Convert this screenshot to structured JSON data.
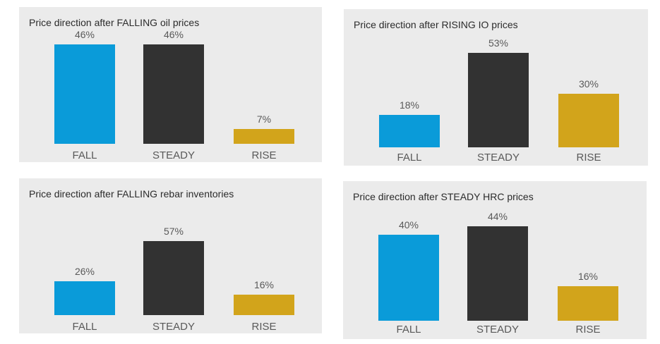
{
  "page": {
    "background": "#ffffff",
    "panel_background": "#ebebeb",
    "title_color": "#2b2b2b",
    "label_color": "#595959"
  },
  "bar_colors": [
    "#0a9bd9",
    "#323232",
    "#d2a41b"
  ],
  "bar_color_names": [
    "fall-blue",
    "steady-dark",
    "rise-gold"
  ],
  "chart_data": [
    {
      "type": "bar",
      "title": "Price direction after FALLING oil prices",
      "categories": [
        "FALL",
        "STEADY",
        "RISE"
      ],
      "values": [
        46,
        46,
        7
      ],
      "value_labels": [
        "46%",
        "46%",
        "7%"
      ],
      "unit": "%",
      "ylim": [
        0,
        50
      ],
      "grid": false,
      "legend": false,
      "axes_hidden": true
    },
    {
      "type": "bar",
      "title": "Price direction after RISING IO prices",
      "categories": [
        "FALL",
        "STEADY",
        "RISE"
      ],
      "values": [
        18,
        53,
        30
      ],
      "value_labels": [
        "18%",
        "53%",
        "30%"
      ],
      "unit": "%",
      "ylim": [
        0,
        60
      ],
      "grid": false,
      "legend": false,
      "axes_hidden": true
    },
    {
      "type": "bar",
      "title": "Price direction after FALLING rebar inventories",
      "categories": [
        "FALL",
        "STEADY",
        "RISE"
      ],
      "values": [
        26,
        57,
        16
      ],
      "value_labels": [
        "26%",
        "57%",
        "16%"
      ],
      "unit": "%",
      "ylim": [
        0,
        60
      ],
      "grid": false,
      "legend": false,
      "axes_hidden": true
    },
    {
      "type": "bar",
      "title": "Price direction after STEADY HRC prices",
      "categories": [
        "FALL",
        "STEADY",
        "RISE"
      ],
      "values": [
        40,
        44,
        16
      ],
      "value_labels": [
        "40%",
        "44%",
        "16%"
      ],
      "unit": "%",
      "ylim": [
        0,
        50
      ],
      "grid": false,
      "legend": false,
      "axes_hidden": true
    }
  ]
}
